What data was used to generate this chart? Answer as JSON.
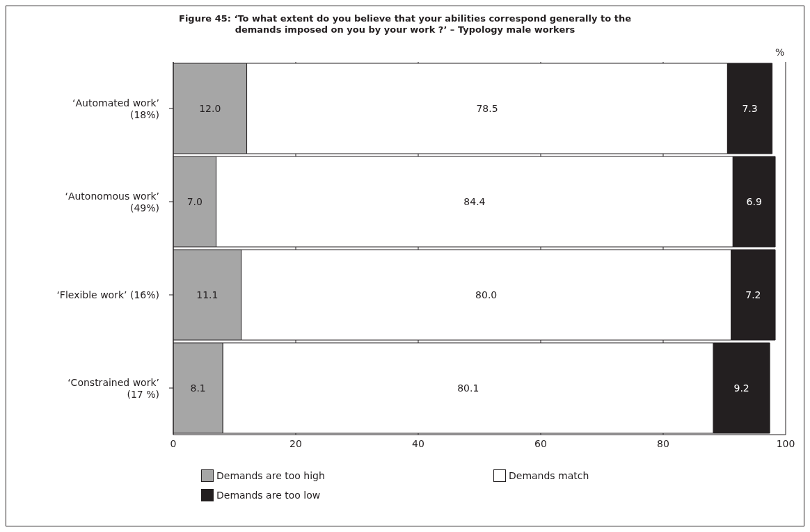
{
  "chart_data": {
    "type": "bar",
    "orientation": "horizontal",
    "stacked": true,
    "title": "Figure 45: ‘To what extent do you believe that your abilities correspond generally to the demands imposed on you by your work ?’ – Typology male workers",
    "xlabel": "%",
    "categories": [
      "‘Automated work’ (18%)",
      "‘Autonomous work’ (49%)",
      "‘Flexible work’ (16%)",
      "‘Constrained work’ (17 %)"
    ],
    "series": [
      {
        "name": "Demands are too high",
        "color": "#a6a6a6",
        "values": [
          12,
          7,
          11.1,
          8.1
        ],
        "value_labels": [
          "12.0",
          "7.0",
          "11.1",
          "8.1"
        ]
      },
      {
        "name": "Demands match",
        "color": "#ffffff",
        "values": [
          78.5,
          84.4,
          80,
          80.1
        ],
        "value_labels": [
          "78.5",
          "84.4",
          "80.0",
          "80.1"
        ]
      },
      {
        "name": "Demands are too low",
        "color": "#231f20",
        "values": [
          7.3,
          6.9,
          7.2,
          9.2
        ],
        "value_labels": [
          "7.3",
          "6.9",
          "7.2",
          "9.2"
        ]
      }
    ],
    "xlim": [
      0,
      100
    ],
    "xticks": [
      0,
      20,
      40,
      60,
      80,
      100
    ],
    "grid": "x",
    "legend": "bottom"
  }
}
